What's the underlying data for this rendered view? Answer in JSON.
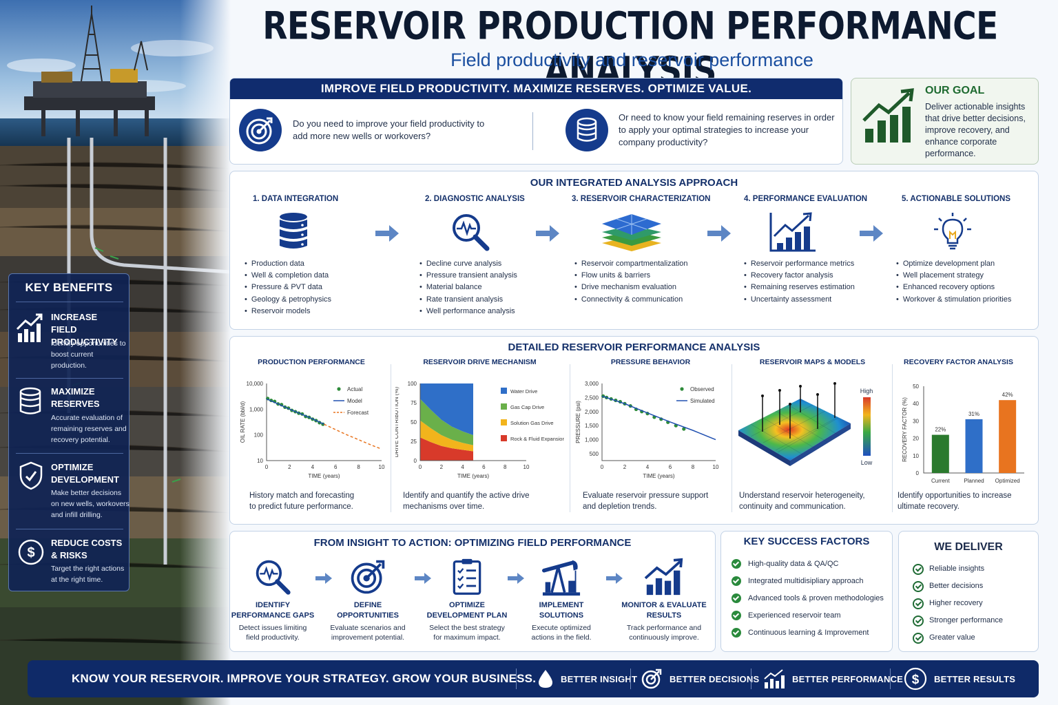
{
  "header": {
    "title": "RESERVOIR PRODUCTION PERFORMANCE ANALYSIS",
    "subtitle": "Field productivity and reservoir performance"
  },
  "intro": {
    "banner": "IMPROVE FIELD PRODUCTIVITY. MAXIMIZE RESERVES. OPTIMIZE VALUE.",
    "question_1": "Do you need to improve your field productivity to add more new wells or workovers?",
    "question_2": "Or need to know your field remaining reserves in order to apply your optimal strategies to increase your company productivity?"
  },
  "goal": {
    "title": "OUR GOAL",
    "text": "Deliver actionable insights that drive better decisions, improve recovery, and enhance corporate performance."
  },
  "benefits": {
    "title": "KEY BENEFITS",
    "items": [
      {
        "title_1": "INCREASE",
        "title_2": "FIELD PRODUCTIVITY",
        "desc": "Identify opportunities to boost current production.",
        "icon": "chart-up-icon"
      },
      {
        "title_1": "MAXIMIZE",
        "title_2": "RESERVES",
        "desc": "Accurate evaluation of remaining reserves and recovery potential.",
        "icon": "database-icon"
      },
      {
        "title_1": "OPTIMIZE",
        "title_2": "DEVELOPMENT",
        "desc": "Make better decisions on new wells, workovers and infill drilling.",
        "icon": "shield-icon"
      },
      {
        "title_1": "REDUCE COSTS",
        "title_2": "& RISKS",
        "desc": "Target the right actions at the right time.",
        "icon": "dollar-icon"
      }
    ]
  },
  "approach": {
    "title": "OUR INTEGRATED ANALYSIS APPROACH",
    "steps": [
      {
        "title": "1. DATA INTEGRATION",
        "icon": "database-icon",
        "items": [
          "Production data",
          "Well & completion data",
          "Pressure & PVT data",
          "Geology & petrophysics",
          "Reservoir models"
        ]
      },
      {
        "title": "2. DIAGNOSTIC ANALYSIS",
        "icon": "magnifier-pulse-icon",
        "items": [
          "Decline curve analysis",
          "Pressure transient analysis",
          "Material balance",
          "Rate transient analysis",
          "Well performance analysis"
        ]
      },
      {
        "title": "3. RESERVOIR CHARACTERIZATION",
        "icon": "layers-icon",
        "items": [
          "Reservoir compartmentalization",
          "Flow units & barriers",
          "Drive mechanism evaluation",
          "Connectivity & communication"
        ]
      },
      {
        "title": "4. PERFORMANCE EVALUATION",
        "icon": "bar-chart-icon",
        "items": [
          "Reservoir performance metrics",
          "Recovery factor analysis",
          "Remaining reserves estimation",
          "Uncertainty assessment"
        ]
      },
      {
        "title": "5. ACTIONABLE SOLUTIONS",
        "icon": "lightbulb-icon",
        "items": [
          "Optimize development plan",
          "Well placement strategy",
          "Enhanced recovery options",
          "Workover & stimulation priorities"
        ]
      }
    ]
  },
  "detail": {
    "title": "DETAILED RESERVOIR PERFORMANCE ANALYSIS",
    "panels": [
      {
        "title": "PRODUCTION PERFORMANCE",
        "desc_1": "History match and forecasting",
        "desc_2": "to predict future performance."
      },
      {
        "title": "RESERVOIR DRIVE MECHANISM",
        "desc_1": "Identify and quantify the active drive",
        "desc_2": "mechanisms over time."
      },
      {
        "title": "PRESSURE BEHAVIOR",
        "desc_1": "Evaluate reservoir pressure support",
        "desc_2": "and depletion trends."
      },
      {
        "title": "RESERVOIR MAPS & MODELS",
        "desc_1": "Understand reservoir heterogeneity,",
        "desc_2": "continuity and communication."
      },
      {
        "title": "RECOVERY FACTOR ANALYSIS",
        "desc_1": "Identify opportunities to increase",
        "desc_2": "ultimate recovery."
      }
    ],
    "map_legend": {
      "high": "High",
      "low": "Low"
    }
  },
  "chart_data": [
    {
      "type": "scatter",
      "title": "PRODUCTION PERFORMANCE",
      "xlabel": "TIME (years)",
      "ylabel": "OIL RATE (bbl/d)",
      "yscale": "log",
      "xlim": [
        0,
        10
      ],
      "ylim": [
        10,
        10000
      ],
      "x_ticks": [
        "0",
        "2",
        "4",
        "6",
        "8",
        "10"
      ],
      "y_ticks": [
        "10",
        "100",
        "1,000",
        "10,000"
      ],
      "legend": [
        "Actual",
        "Model",
        "Forecast"
      ],
      "legend_position": "top-right",
      "series": [
        {
          "name": "Actual",
          "x": [
            0.1,
            0.4,
            0.7,
            1.0,
            1.3,
            1.6,
            1.9,
            2.2,
            2.5,
            2.8,
            3.1,
            3.4,
            3.7,
            4.0,
            4.3,
            4.6,
            4.9
          ],
          "y": [
            2600,
            2200,
            2000,
            1600,
            1500,
            1200,
            1100,
            900,
            800,
            700,
            650,
            520,
            480,
            410,
            360,
            300,
            260
          ]
        },
        {
          "name": "Model",
          "x": [
            0,
            1,
            2,
            3,
            4,
            5
          ],
          "y": [
            2500,
            1600,
            1000,
            650,
            420,
            260
          ]
        },
        {
          "name": "Forecast",
          "x": [
            5,
            6,
            7,
            8,
            9,
            10
          ],
          "y": [
            260,
            160,
            100,
            65,
            42,
            28
          ]
        }
      ]
    },
    {
      "type": "area",
      "title": "RESERVOIR DRIVE MECHANISM",
      "xlabel": "TIME (years)",
      "ylabel": "DRIVE CONTRIBUTION (%)",
      "xlim": [
        0,
        10
      ],
      "ylim": [
        0,
        100
      ],
      "x_ticks": [
        "0",
        "2",
        "4",
        "6",
        "8",
        "10"
      ],
      "y_ticks": [
        "0",
        "25",
        "50",
        "75",
        "100"
      ],
      "x": [
        0,
        1,
        2,
        3,
        4,
        5
      ],
      "stacked": true,
      "legend_position": "right",
      "series": [
        {
          "name": "Rock & Fluid Expansion",
          "color": "#d83a2a",
          "values": [
            30,
            24,
            19,
            16,
            14,
            12
          ]
        },
        {
          "name": "Solution Gas Drive",
          "color": "#f2b41c",
          "values": [
            22,
            18,
            14,
            11,
            9,
            8
          ]
        },
        {
          "name": "Gas Cap Drive",
          "color": "#6ab04a",
          "values": [
            28,
            24,
            20,
            17,
            15,
            13
          ]
        },
        {
          "name": "Water Drive",
          "color": "#2f6fc8",
          "values": [
            20,
            34,
            47,
            56,
            62,
            67
          ]
        }
      ]
    },
    {
      "type": "scatter",
      "title": "PRESSURE BEHAVIOR",
      "xlabel": "TIME (years)",
      "ylabel": "PRESSURE (psi)",
      "xlim": [
        0,
        10
      ],
      "ylim": [
        500,
        3000
      ],
      "x_ticks": [
        "0",
        "2",
        "4",
        "6",
        "8",
        "10"
      ],
      "y_ticks": [
        "500",
        "1,000",
        "1,500",
        "2,000",
        "2,500",
        "3,000"
      ],
      "legend": [
        "Observed",
        "Simulated"
      ],
      "legend_position": "top-right",
      "series": [
        {
          "name": "Observed",
          "x": [
            0.1,
            0.4,
            0.8,
            1.2,
            1.6,
            2.0,
            2.5,
            3.0,
            3.5,
            4.0,
            4.6,
            5.2,
            5.8,
            6.5,
            7.2
          ],
          "y": [
            2550,
            2500,
            2450,
            2400,
            2350,
            2280,
            2200,
            2080,
            2000,
            1930,
            1800,
            1730,
            1620,
            1500,
            1380
          ]
        },
        {
          "name": "Simulated",
          "x": [
            0,
            2,
            4,
            6,
            8,
            10
          ],
          "y": [
            2550,
            2280,
            1950,
            1630,
            1330,
            1000
          ]
        }
      ]
    },
    {
      "type": "bar",
      "title": "RECOVERY FACTOR ANALYSIS",
      "ylabel": "RECOVERY FACTOR (%)",
      "ylim": [
        0,
        50
      ],
      "y_ticks": [
        "0",
        "10",
        "20",
        "30",
        "40",
        "50"
      ],
      "categories": [
        "Current",
        "Planned",
        "Optimized"
      ],
      "values": [
        22,
        31,
        42
      ],
      "labels": [
        "22%",
        "31%",
        "42%"
      ],
      "colors": [
        "#2b7a2e",
        "#2f6fc8",
        "#e8741f"
      ]
    }
  ],
  "action": {
    "title": "FROM INSIGHT TO ACTION: OPTIMIZING FIELD PERFORMANCE",
    "items": [
      {
        "title_1": "IDENTIFY",
        "title_2": "PERFORMANCE GAPS",
        "desc_1": "Detect issues limiting",
        "desc_2": "field productivity.",
        "icon": "magnifier-pulse-icon"
      },
      {
        "title_1": "DEFINE",
        "title_2": "OPPORTUNITIES",
        "desc_1": "Evaluate scenarios and",
        "desc_2": "improvement potential.",
        "icon": "target-icon"
      },
      {
        "title_1": "OPTIMIZE",
        "title_2": "DEVELOPMENT PLAN",
        "desc_1": "Select the best strategy",
        "desc_2": "for maximum impact.",
        "icon": "checklist-icon"
      },
      {
        "title_1": "IMPLEMENT",
        "title_2": "SOLUTIONS",
        "desc_1": "Execute optimized",
        "desc_2": "actions in the field.",
        "icon": "pumpjack-icon"
      },
      {
        "title_1": "MONITOR & EVALUATE",
        "title_2": "RESULTS",
        "desc_1": "Track performance and",
        "desc_2": "continuously improve.",
        "icon": "chart-up-icon"
      }
    ]
  },
  "success": {
    "title": "KEY SUCCESS FACTORS",
    "items": [
      "High-quality data & QA/QC",
      "Integrated multidisipliary approach",
      "Advanced tools & proven methodologies",
      "Experienced reservoir team",
      "Continuous learning & Improvement"
    ]
  },
  "deliver": {
    "title": "WE DELIVER",
    "items": [
      "Reliable insights",
      "Better decisions",
      "Higher recovery",
      "Stronger performance",
      "Greater value"
    ]
  },
  "bottom": {
    "tagline": "KNOW YOUR RESERVOIR. IMPROVE YOUR STRATEGY. GROW YOUR BUSINESS.",
    "items": [
      {
        "label": "BETTER INSIGHT",
        "icon": "drop-icon"
      },
      {
        "label": "BETTER DECISIONS",
        "icon": "target-icon"
      },
      {
        "label": "BETTER PERFORMANCE",
        "icon": "chart-up-icon"
      },
      {
        "label": "BETTER RESULTS",
        "icon": "dollar-icon"
      }
    ]
  },
  "colors": {
    "navy": "#102c6e",
    "accent_blue": "#1b4fa0",
    "green": "#1e6a30"
  }
}
